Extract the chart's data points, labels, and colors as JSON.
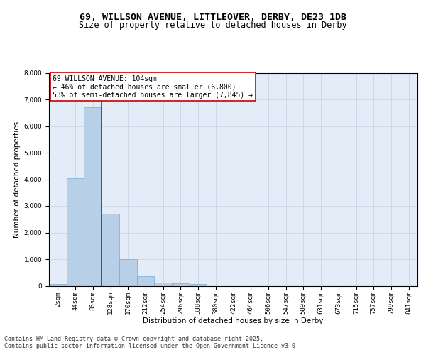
{
  "title_line1": "69, WILLSON AVENUE, LITTLEOVER, DERBY, DE23 1DB",
  "title_line2": "Size of property relative to detached houses in Derby",
  "xlabel": "Distribution of detached houses by size in Derby",
  "ylabel": "Number of detached properties",
  "bar_labels": [
    "2sqm",
    "44sqm",
    "86sqm",
    "128sqm",
    "170sqm",
    "212sqm",
    "254sqm",
    "296sqm",
    "338sqm",
    "380sqm",
    "422sqm",
    "464sqm",
    "506sqm",
    "547sqm",
    "589sqm",
    "631sqm",
    "673sqm",
    "715sqm",
    "757sqm",
    "799sqm",
    "841sqm"
  ],
  "bar_values": [
    60,
    4050,
    6700,
    2700,
    1000,
    360,
    130,
    100,
    60,
    0,
    0,
    0,
    0,
    0,
    0,
    0,
    0,
    0,
    0,
    0,
    0
  ],
  "bar_color": "#b8cfe8",
  "bar_edgecolor": "#7aaad0",
  "vline_x_index": 2,
  "vline_color": "#cc0000",
  "annotation_text": "69 WILLSON AVENUE: 104sqm\n← 46% of detached houses are smaller (6,800)\n53% of semi-detached houses are larger (7,845) →",
  "annotation_box_color": "#ffffff",
  "annotation_box_edgecolor": "#cc0000",
  "ylim": [
    0,
    8000
  ],
  "yticks": [
    0,
    1000,
    2000,
    3000,
    4000,
    5000,
    6000,
    7000,
    8000
  ],
  "grid_color": "#c8d4e8",
  "background_color": "#e4ecf8",
  "footer_line1": "Contains HM Land Registry data © Crown copyright and database right 2025.",
  "footer_line2": "Contains public sector information licensed under the Open Government Licence v3.0.",
  "title_fontsize": 9.5,
  "subtitle_fontsize": 8.5,
  "axis_label_fontsize": 7.5,
  "tick_fontsize": 6.5,
  "annotation_fontsize": 7,
  "footer_fontsize": 6
}
